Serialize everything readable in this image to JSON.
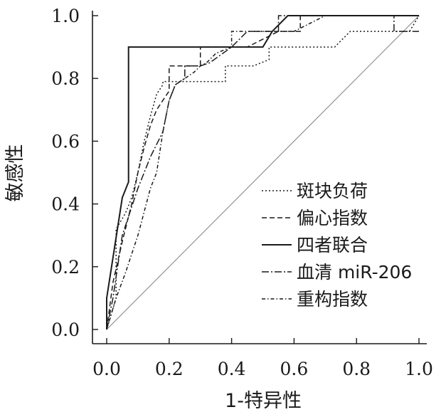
{
  "chart_data": {
    "type": "line",
    "title": "",
    "xlabel": "1-特异性",
    "ylabel": "敏感性",
    "xlim": [
      0,
      1
    ],
    "ylim": [
      0,
      1
    ],
    "xticks": [
      "0.0",
      "0.2",
      "0.4",
      "0.6",
      "0.8",
      "1.0"
    ],
    "yticks": [
      "0.0",
      "0.2",
      "0.4",
      "0.6",
      "0.8",
      "1.0"
    ],
    "grid": false,
    "legend_position": "right",
    "colors": {
      "line": "#1a1a1a",
      "reference": "#8a8a8a"
    },
    "reference_line": {
      "x": [
        0,
        1
      ],
      "y": [
        0,
        1
      ]
    },
    "series": [
      {
        "name": "斑块负荷",
        "dash": "2,3",
        "x": [
          0,
          0.03,
          0.03,
          0.06,
          0.08,
          0.1,
          0.12,
          0.14,
          0.16,
          0.18,
          0.18,
          0.25,
          0.25,
          0.38,
          0.38,
          0.47,
          0.52,
          0.52,
          0.73,
          0.78,
          0.97,
          1
        ],
        "y": [
          0,
          0.1,
          0.32,
          0.37,
          0.42,
          0.5,
          0.6,
          0.68,
          0.75,
          0.78,
          0.79,
          0.79,
          0.79,
          0.79,
          0.84,
          0.84,
          0.86,
          0.9,
          0.9,
          0.95,
          0.95,
          1
        ]
      },
      {
        "name": "偏心指数",
        "dash": "7,4",
        "x": [
          0,
          0.02,
          0.05,
          0.08,
          0.1,
          0.12,
          0.14,
          0.16,
          0.2,
          0.2,
          0.3,
          0.3,
          0.45,
          0.55,
          0.62,
          0.62,
          0.84,
          0.84,
          1
        ],
        "y": [
          0,
          0.15,
          0.28,
          0.4,
          0.5,
          0.58,
          0.65,
          0.7,
          0.76,
          0.84,
          0.84,
          0.9,
          0.9,
          0.95,
          0.95,
          1,
          1,
          1,
          1
        ]
      },
      {
        "name": "四者联合",
        "dash": "",
        "x": [
          0,
          0,
          0.05,
          0.07,
          0.07,
          0.5,
          0.53,
          0.58,
          1,
          1
        ],
        "y": [
          0,
          0.1,
          0.42,
          0.47,
          0.9,
          0.9,
          0.95,
          1,
          1,
          1
        ]
      },
      {
        "name": "血清 miR-206",
        "dash": "10,3,2,3",
        "x": [
          0,
          0.02,
          0.05,
          0.1,
          0.12,
          0.14,
          0.18,
          0.2,
          0.22,
          0.25,
          0.25,
          0.3,
          0.33,
          0.4,
          0.45,
          0.55,
          0.55,
          0.92,
          0.92,
          1
        ],
        "y": [
          0,
          0.1,
          0.3,
          0.45,
          0.5,
          0.55,
          0.63,
          0.73,
          0.78,
          0.8,
          0.84,
          0.84,
          0.85,
          0.9,
          0.95,
          0.95,
          1,
          1,
          0.95,
          0.95
        ]
      },
      {
        "name": "重构指数",
        "dash": "5,3,1.5,3",
        "x": [
          0,
          0.03,
          0.06,
          0.1,
          0.14,
          0.16,
          0.18,
          0.2,
          0.22,
          0.25,
          0.28,
          0.3,
          0.32,
          0.35,
          0.4,
          0.4,
          0.5,
          0.6,
          0.7,
          0.9,
          1
        ],
        "y": [
          0,
          0.1,
          0.18,
          0.3,
          0.45,
          0.5,
          0.63,
          0.73,
          0.78,
          0.8,
          0.82,
          0.84,
          0.85,
          0.88,
          0.9,
          0.95,
          0.95,
          0.95,
          1,
          1,
          1
        ]
      }
    ]
  }
}
